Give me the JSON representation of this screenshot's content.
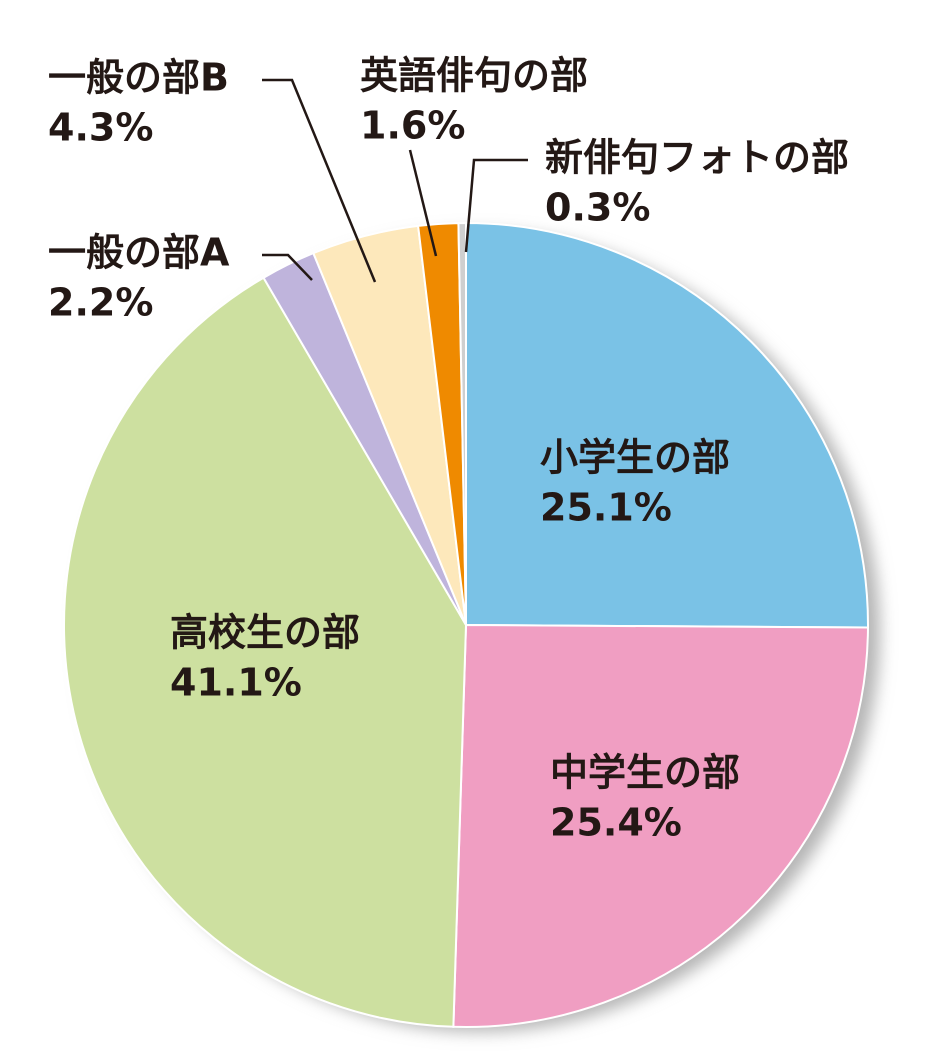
{
  "chart_data": {
    "type": "pie",
    "categories": [
      "小学生の部",
      "中学生の部",
      "高校生の部",
      "一般の部A",
      "一般の部B",
      "英語俳句の部",
      "新俳句フォトの部"
    ],
    "values": [
      25.1,
      25.4,
      41.1,
      2.2,
      4.3,
      1.6,
      0.3
    ],
    "value_labels": [
      "25.1%",
      "25.4%",
      "41.1%",
      "2.2%",
      "4.3%",
      "1.6%",
      "0.3%"
    ],
    "colors": [
      "#7ac2e6",
      "#f09ec2",
      "#cde0a0",
      "#bfb4dc",
      "#fde8bb",
      "#ef8a00",
      "#cfcfcf"
    ]
  }
}
